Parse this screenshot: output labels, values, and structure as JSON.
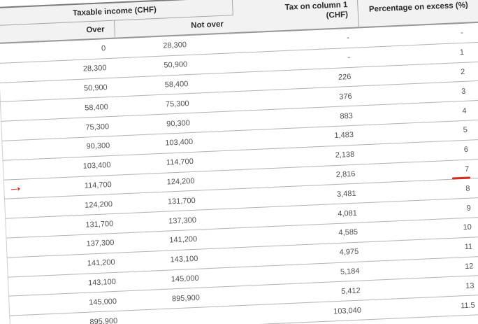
{
  "table": {
    "headers": {
      "taxable_income": "Taxable income (CHF)",
      "over": "Over",
      "not_over": "Not over",
      "tax_on_column1": "Tax on column 1 (CHF)",
      "percentage": "Percentage on excess (%)"
    },
    "rows": [
      {
        "over": "0",
        "not_over": "28,300",
        "tax": "-",
        "pct": "-"
      },
      {
        "over": "28,300",
        "not_over": "50,900",
        "tax": "-",
        "pct": "1"
      },
      {
        "over": "50,900",
        "not_over": "58,400",
        "tax": "226",
        "pct": "2"
      },
      {
        "over": "58,400",
        "not_over": "75,300",
        "tax": "376",
        "pct": "3"
      },
      {
        "over": "75,300",
        "not_over": "90,300",
        "tax": "883",
        "pct": "4"
      },
      {
        "over": "90,300",
        "not_over": "103,400",
        "tax": "1,483",
        "pct": "5"
      },
      {
        "over": "103,400",
        "not_over": "114,700",
        "tax": "2,138",
        "pct": "6"
      },
      {
        "over": "114,700",
        "not_over": "124,200",
        "tax": "2,816",
        "pct": "7"
      },
      {
        "over": "124,200",
        "not_over": "131,700",
        "tax": "3,481",
        "pct": "8"
      },
      {
        "over": "131,700",
        "not_over": "137,300",
        "tax": "4,081",
        "pct": "9"
      },
      {
        "over": "137,300",
        "not_over": "141,200",
        "tax": "4,585",
        "pct": "10"
      },
      {
        "over": "141,200",
        "not_over": "143,100",
        "tax": "4,975",
        "pct": "11"
      },
      {
        "over": "143,100",
        "not_over": "145,000",
        "tax": "5,184",
        "pct": "12"
      },
      {
        "over": "145,000",
        "not_over": "895,900",
        "tax": "5,412",
        "pct": "13"
      },
      {
        "over": "895,900",
        "not_over": "",
        "tax": "103,040",
        "pct": "11.5"
      }
    ],
    "annotations": {
      "arrow_glyph": "→",
      "arrow_points_to_row_over": "114,700",
      "underlined_percentage": "7"
    },
    "colors": {
      "annotation_red": "#d6281c",
      "header_bg": "#f2f2f2",
      "row_border": "#b3b3b3",
      "top_border": "#7a7a7a",
      "data_text": "#4f4f4f",
      "header_text": "#2b2b2b"
    }
  }
}
